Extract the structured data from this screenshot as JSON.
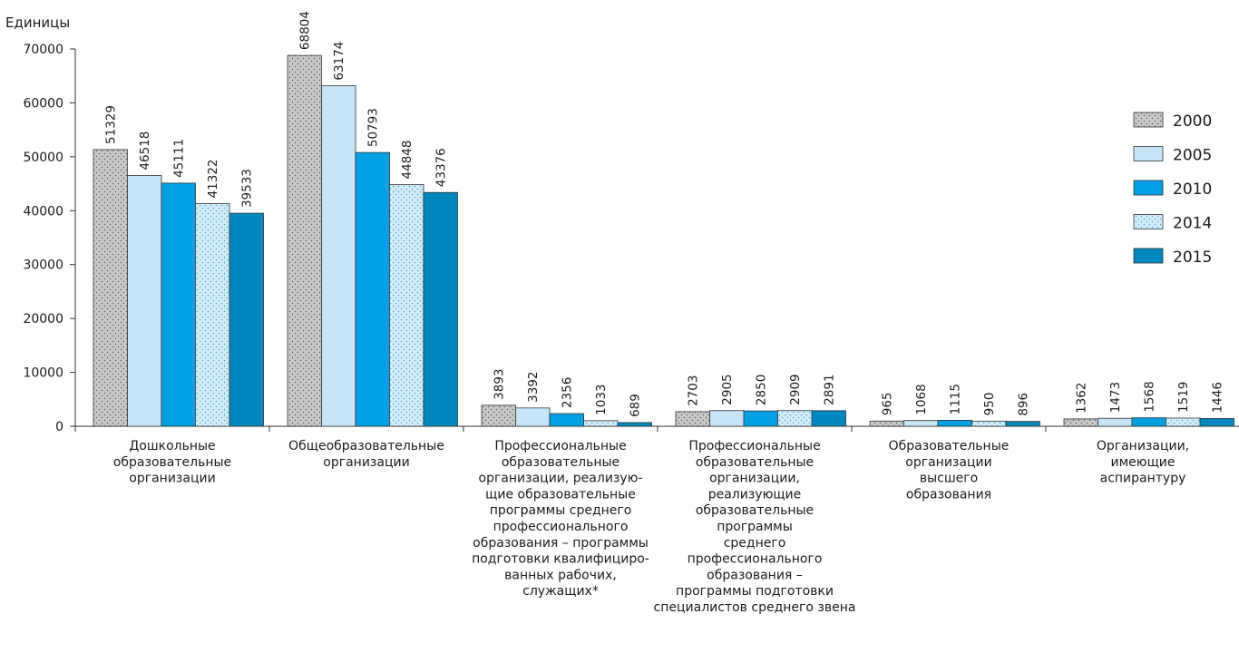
{
  "chart_data": {
    "type": "bar",
    "ylabel": "Единицы",
    "ylim": [
      0,
      70000
    ],
    "yticks": [
      0,
      10000,
      20000,
      30000,
      40000,
      50000,
      60000,
      70000
    ],
    "grid": false,
    "legend_position": "right",
    "categories": [
      [
        "Дошкольные",
        "образовательные",
        "организации"
      ],
      [
        "Общеобразовательные",
        "организации"
      ],
      [
        "Профессиональные",
        "образовательные",
        "организации, реализую-",
        "щие образовательные",
        "программы среднего",
        "профессионального",
        "образования – программы",
        "подготовки квалифициро-",
        "ванных рабочих,",
        "служащих*"
      ],
      [
        "Профессиональные",
        "образовательные",
        "организации,",
        "реализующие",
        "образовательные",
        "программы",
        "среднего",
        "профессионального",
        "образования –",
        "программы подготовки",
        "специалистов среднего звена"
      ],
      [
        "Образовательные",
        "организации",
        "высшего",
        "образования"
      ],
      [
        "Организации,",
        "имеющие",
        "аспирантуру"
      ]
    ],
    "series": [
      {
        "name": "2000",
        "color": "#c8c8c8",
        "pattern": "dots-dark",
        "values": [
          51329,
          68804,
          3893,
          2703,
          965,
          1362
        ]
      },
      {
        "name": "2005",
        "color": "#c5e6f6",
        "pattern": "none",
        "values": [
          46518,
          63174,
          3392,
          2905,
          1068,
          1473
        ]
      },
      {
        "name": "2010",
        "color": "#00a0e3",
        "pattern": "none",
        "values": [
          45111,
          50793,
          2356,
          2850,
          1115,
          1568
        ]
      },
      {
        "name": "2014",
        "color": "#c5e6f6",
        "pattern": "dots-blue",
        "values": [
          41322,
          44848,
          1033,
          2909,
          950,
          1519
        ]
      },
      {
        "name": "2015",
        "color": "#0087c0",
        "pattern": "none",
        "values": [
          39533,
          43376,
          689,
          2891,
          896,
          1446
        ]
      }
    ]
  }
}
